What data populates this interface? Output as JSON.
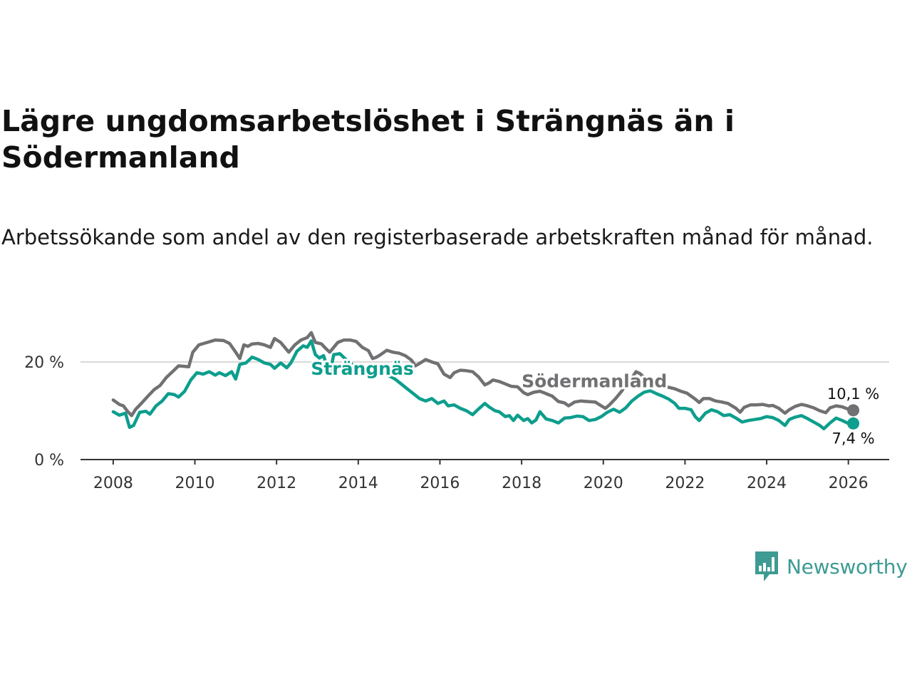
{
  "header": {
    "title": "Lägre ungdomsarbetslöshet i Strängnäs än i Södermanland",
    "subtitle": "Arbetssökande som andel av den registerbaserade arbetskraften månad för månad."
  },
  "branding": {
    "name": "Newsworthy",
    "color": "#3d9b93"
  },
  "chart_data": {
    "type": "line",
    "title": "Lägre ungdomsarbetslöshet i Strängnäs än i Södermanland",
    "xlabel": "",
    "ylabel": "",
    "xlim": [
      2007.2,
      2027.0
    ],
    "ylim": [
      0,
      25
    ],
    "y_ticks": [
      {
        "value": 0,
        "label": "0 %"
      },
      {
        "value": 20,
        "label": "20 %"
      }
    ],
    "x_ticks": [
      "2008",
      "2010",
      "2012",
      "2014",
      "2016",
      "2018",
      "2020",
      "2022",
      "2024",
      "2026"
    ],
    "grid": true,
    "series": [
      {
        "name": "Södermanland",
        "color": "#717073",
        "end_label": "10,1 %",
        "points": [
          [
            2008.0,
            12.2
          ],
          [
            2008.15,
            11.3
          ],
          [
            2008.25,
            11.0
          ],
          [
            2008.35,
            9.9
          ],
          [
            2008.45,
            9.0
          ],
          [
            2008.55,
            10.3
          ],
          [
            2008.7,
            11.6
          ],
          [
            2008.85,
            13.0
          ],
          [
            2009.0,
            14.3
          ],
          [
            2009.15,
            15.2
          ],
          [
            2009.3,
            16.8
          ],
          [
            2009.45,
            18.0
          ],
          [
            2009.6,
            19.2
          ],
          [
            2009.75,
            19.1
          ],
          [
            2009.85,
            19.0
          ],
          [
            2009.95,
            22.0
          ],
          [
            2010.1,
            23.5
          ],
          [
            2010.3,
            24.0
          ],
          [
            2010.5,
            24.5
          ],
          [
            2010.7,
            24.4
          ],
          [
            2010.85,
            23.8
          ],
          [
            2011.0,
            22.0
          ],
          [
            2011.1,
            20.7
          ],
          [
            2011.2,
            23.5
          ],
          [
            2011.3,
            23.2
          ],
          [
            2011.4,
            23.7
          ],
          [
            2011.55,
            23.8
          ],
          [
            2011.7,
            23.5
          ],
          [
            2011.85,
            23.0
          ],
          [
            2011.95,
            24.8
          ],
          [
            2012.1,
            24.0
          ],
          [
            2012.3,
            22.0
          ],
          [
            2012.45,
            23.5
          ],
          [
            2012.6,
            24.5
          ],
          [
            2012.75,
            25.0
          ],
          [
            2012.85,
            26.0
          ],
          [
            2012.95,
            24.0
          ],
          [
            2013.1,
            23.7
          ],
          [
            2013.2,
            22.8
          ],
          [
            2013.3,
            22.0
          ],
          [
            2013.4,
            23.0
          ],
          [
            2013.5,
            24.0
          ],
          [
            2013.65,
            24.5
          ],
          [
            2013.8,
            24.5
          ],
          [
            2013.95,
            24.2
          ],
          [
            2014.1,
            23.0
          ],
          [
            2014.25,
            22.3
          ],
          [
            2014.35,
            20.7
          ],
          [
            2014.45,
            21.0
          ],
          [
            2014.55,
            21.5
          ],
          [
            2014.7,
            22.4
          ],
          [
            2014.85,
            22.0
          ],
          [
            2015.0,
            21.8
          ],
          [
            2015.15,
            21.3
          ],
          [
            2015.3,
            20.4
          ],
          [
            2015.4,
            19.2
          ],
          [
            2015.5,
            19.7
          ],
          [
            2015.65,
            20.5
          ],
          [
            2015.8,
            20.0
          ],
          [
            2015.95,
            19.6
          ],
          [
            2016.1,
            17.5
          ],
          [
            2016.25,
            16.8
          ],
          [
            2016.35,
            17.8
          ],
          [
            2016.5,
            18.3
          ],
          [
            2016.65,
            18.2
          ],
          [
            2016.8,
            18.0
          ],
          [
            2016.95,
            16.9
          ],
          [
            2017.1,
            15.3
          ],
          [
            2017.2,
            15.7
          ],
          [
            2017.3,
            16.3
          ],
          [
            2017.45,
            16.0
          ],
          [
            2017.6,
            15.5
          ],
          [
            2017.75,
            15.0
          ],
          [
            2017.9,
            14.9
          ],
          [
            2018.05,
            13.7
          ],
          [
            2018.15,
            13.3
          ],
          [
            2018.3,
            13.8
          ],
          [
            2018.45,
            14.0
          ],
          [
            2018.6,
            13.5
          ],
          [
            2018.75,
            13.0
          ],
          [
            2018.9,
            11.9
          ],
          [
            2019.05,
            11.6
          ],
          [
            2019.15,
            11.0
          ],
          [
            2019.3,
            11.8
          ],
          [
            2019.45,
            12.0
          ],
          [
            2019.6,
            11.9
          ],
          [
            2019.8,
            11.8
          ],
          [
            2019.95,
            11.0
          ],
          [
            2020.05,
            10.5
          ],
          [
            2020.15,
            11.2
          ],
          [
            2020.3,
            12.5
          ],
          [
            2020.45,
            14.0
          ],
          [
            2020.6,
            16.0
          ],
          [
            2020.7,
            16.7
          ],
          [
            2020.8,
            18.0
          ],
          [
            2020.9,
            17.6
          ],
          [
            2021.0,
            16.8
          ],
          [
            2021.15,
            16.0
          ],
          [
            2021.3,
            15.5
          ],
          [
            2021.45,
            15.0
          ],
          [
            2021.6,
            14.8
          ],
          [
            2021.75,
            14.5
          ],
          [
            2021.9,
            14.0
          ],
          [
            2022.05,
            13.6
          ],
          [
            2022.15,
            13.0
          ],
          [
            2022.25,
            12.4
          ],
          [
            2022.35,
            11.7
          ],
          [
            2022.45,
            12.5
          ],
          [
            2022.6,
            12.5
          ],
          [
            2022.75,
            12.0
          ],
          [
            2022.9,
            11.8
          ],
          [
            2023.05,
            11.5
          ],
          [
            2023.15,
            11.0
          ],
          [
            2023.25,
            10.5
          ],
          [
            2023.35,
            9.7
          ],
          [
            2023.45,
            10.7
          ],
          [
            2023.6,
            11.2
          ],
          [
            2023.75,
            11.2
          ],
          [
            2023.9,
            11.3
          ],
          [
            2024.05,
            11.0
          ],
          [
            2024.15,
            11.1
          ],
          [
            2024.3,
            10.5
          ],
          [
            2024.45,
            9.5
          ],
          [
            2024.55,
            10.2
          ],
          [
            2024.7,
            10.9
          ],
          [
            2024.85,
            11.3
          ],
          [
            2025.0,
            11.0
          ],
          [
            2025.15,
            10.6
          ],
          [
            2025.3,
            10.0
          ],
          [
            2025.45,
            9.6
          ],
          [
            2025.55,
            10.6
          ],
          [
            2025.7,
            11.0
          ],
          [
            2025.85,
            10.8
          ],
          [
            2026.0,
            10.3
          ],
          [
            2026.12,
            10.1
          ]
        ]
      },
      {
        "name": "Strängnäs",
        "color": "#0d9e8d",
        "end_label": "7,4 %",
        "points": [
          [
            2008.0,
            9.8
          ],
          [
            2008.15,
            9.1
          ],
          [
            2008.3,
            9.5
          ],
          [
            2008.4,
            6.6
          ],
          [
            2008.5,
            7.0
          ],
          [
            2008.65,
            9.7
          ],
          [
            2008.8,
            9.9
          ],
          [
            2008.9,
            9.3
          ],
          [
            2009.05,
            11.0
          ],
          [
            2009.2,
            12.0
          ],
          [
            2009.35,
            13.5
          ],
          [
            2009.5,
            13.3
          ],
          [
            2009.6,
            12.8
          ],
          [
            2009.75,
            14.0
          ],
          [
            2009.9,
            16.3
          ],
          [
            2010.05,
            17.8
          ],
          [
            2010.2,
            17.5
          ],
          [
            2010.35,
            18.0
          ],
          [
            2010.5,
            17.3
          ],
          [
            2010.6,
            17.8
          ],
          [
            2010.75,
            17.2
          ],
          [
            2010.9,
            18.0
          ],
          [
            2011.0,
            16.5
          ],
          [
            2011.1,
            19.5
          ],
          [
            2011.25,
            19.8
          ],
          [
            2011.4,
            21.0
          ],
          [
            2011.55,
            20.5
          ],
          [
            2011.7,
            19.8
          ],
          [
            2011.85,
            19.5
          ],
          [
            2011.95,
            18.7
          ],
          [
            2012.1,
            19.8
          ],
          [
            2012.25,
            18.8
          ],
          [
            2012.35,
            19.8
          ],
          [
            2012.5,
            22.2
          ],
          [
            2012.65,
            23.3
          ],
          [
            2012.75,
            23.0
          ],
          [
            2012.85,
            24.3
          ],
          [
            2012.95,
            21.5
          ],
          [
            2013.05,
            20.8
          ],
          [
            2013.15,
            21.3
          ],
          [
            2013.3,
            17.5
          ],
          [
            2013.4,
            21.5
          ],
          [
            2013.55,
            21.7
          ],
          [
            2013.7,
            20.5
          ],
          [
            2013.85,
            19.5
          ],
          [
            2014.0,
            18.8
          ],
          [
            2014.15,
            18.5
          ],
          [
            2014.3,
            18.2
          ],
          [
            2014.45,
            18.0
          ],
          [
            2014.6,
            17.6
          ],
          [
            2014.75,
            17.2
          ],
          [
            2014.9,
            16.5
          ],
          [
            2015.05,
            15.5
          ],
          [
            2015.2,
            14.5
          ],
          [
            2015.35,
            13.5
          ],
          [
            2015.5,
            12.5
          ],
          [
            2015.65,
            12.0
          ],
          [
            2015.8,
            12.5
          ],
          [
            2015.95,
            11.5
          ],
          [
            2016.1,
            12.0
          ],
          [
            2016.2,
            11.0
          ],
          [
            2016.35,
            11.2
          ],
          [
            2016.5,
            10.5
          ],
          [
            2016.65,
            10.0
          ],
          [
            2016.8,
            9.2
          ],
          [
            2016.95,
            10.4
          ],
          [
            2017.1,
            11.5
          ],
          [
            2017.2,
            10.8
          ],
          [
            2017.35,
            10.0
          ],
          [
            2017.45,
            9.8
          ],
          [
            2017.6,
            8.8
          ],
          [
            2017.7,
            9.0
          ],
          [
            2017.8,
            8.0
          ],
          [
            2017.9,
            9.1
          ],
          [
            2018.05,
            8.0
          ],
          [
            2018.15,
            8.4
          ],
          [
            2018.25,
            7.5
          ],
          [
            2018.35,
            8.1
          ],
          [
            2018.45,
            9.8
          ],
          [
            2018.6,
            8.3
          ],
          [
            2018.75,
            8.0
          ],
          [
            2018.9,
            7.5
          ],
          [
            2019.05,
            8.5
          ],
          [
            2019.2,
            8.6
          ],
          [
            2019.35,
            8.9
          ],
          [
            2019.5,
            8.8
          ],
          [
            2019.65,
            8.0
          ],
          [
            2019.8,
            8.2
          ],
          [
            2019.95,
            8.8
          ],
          [
            2020.1,
            9.7
          ],
          [
            2020.25,
            10.3
          ],
          [
            2020.4,
            9.7
          ],
          [
            2020.55,
            10.6
          ],
          [
            2020.7,
            12.0
          ],
          [
            2020.85,
            13.0
          ],
          [
            2021.0,
            13.8
          ],
          [
            2021.15,
            14.1
          ],
          [
            2021.3,
            13.5
          ],
          [
            2021.45,
            13.0
          ],
          [
            2021.6,
            12.4
          ],
          [
            2021.75,
            11.5
          ],
          [
            2021.85,
            10.5
          ],
          [
            2022.0,
            10.5
          ],
          [
            2022.15,
            10.2
          ],
          [
            2022.25,
            8.8
          ],
          [
            2022.35,
            8.0
          ],
          [
            2022.5,
            9.5
          ],
          [
            2022.65,
            10.2
          ],
          [
            2022.8,
            9.8
          ],
          [
            2022.95,
            9.0
          ],
          [
            2023.1,
            9.2
          ],
          [
            2023.25,
            8.5
          ],
          [
            2023.4,
            7.7
          ],
          [
            2023.55,
            8.0
          ],
          [
            2023.7,
            8.2
          ],
          [
            2023.85,
            8.4
          ],
          [
            2024.0,
            8.8
          ],
          [
            2024.15,
            8.6
          ],
          [
            2024.3,
            8.0
          ],
          [
            2024.45,
            7.0
          ],
          [
            2024.55,
            8.2
          ],
          [
            2024.7,
            8.7
          ],
          [
            2024.85,
            9.0
          ],
          [
            2025.0,
            8.4
          ],
          [
            2025.15,
            7.7
          ],
          [
            2025.3,
            7.0
          ],
          [
            2025.4,
            6.3
          ],
          [
            2025.55,
            7.5
          ],
          [
            2025.7,
            8.5
          ],
          [
            2025.85,
            8.0
          ],
          [
            2026.0,
            7.4
          ],
          [
            2026.12,
            7.4
          ]
        ]
      }
    ],
    "annotations": [
      {
        "text": "Strängnäs",
        "series": "Strängnäs",
        "x": 2014.1,
        "y": 17.4
      },
      {
        "text": "Södermanland",
        "series": "Södermanland",
        "x": 2018.0,
        "y": 14.8
      }
    ]
  }
}
